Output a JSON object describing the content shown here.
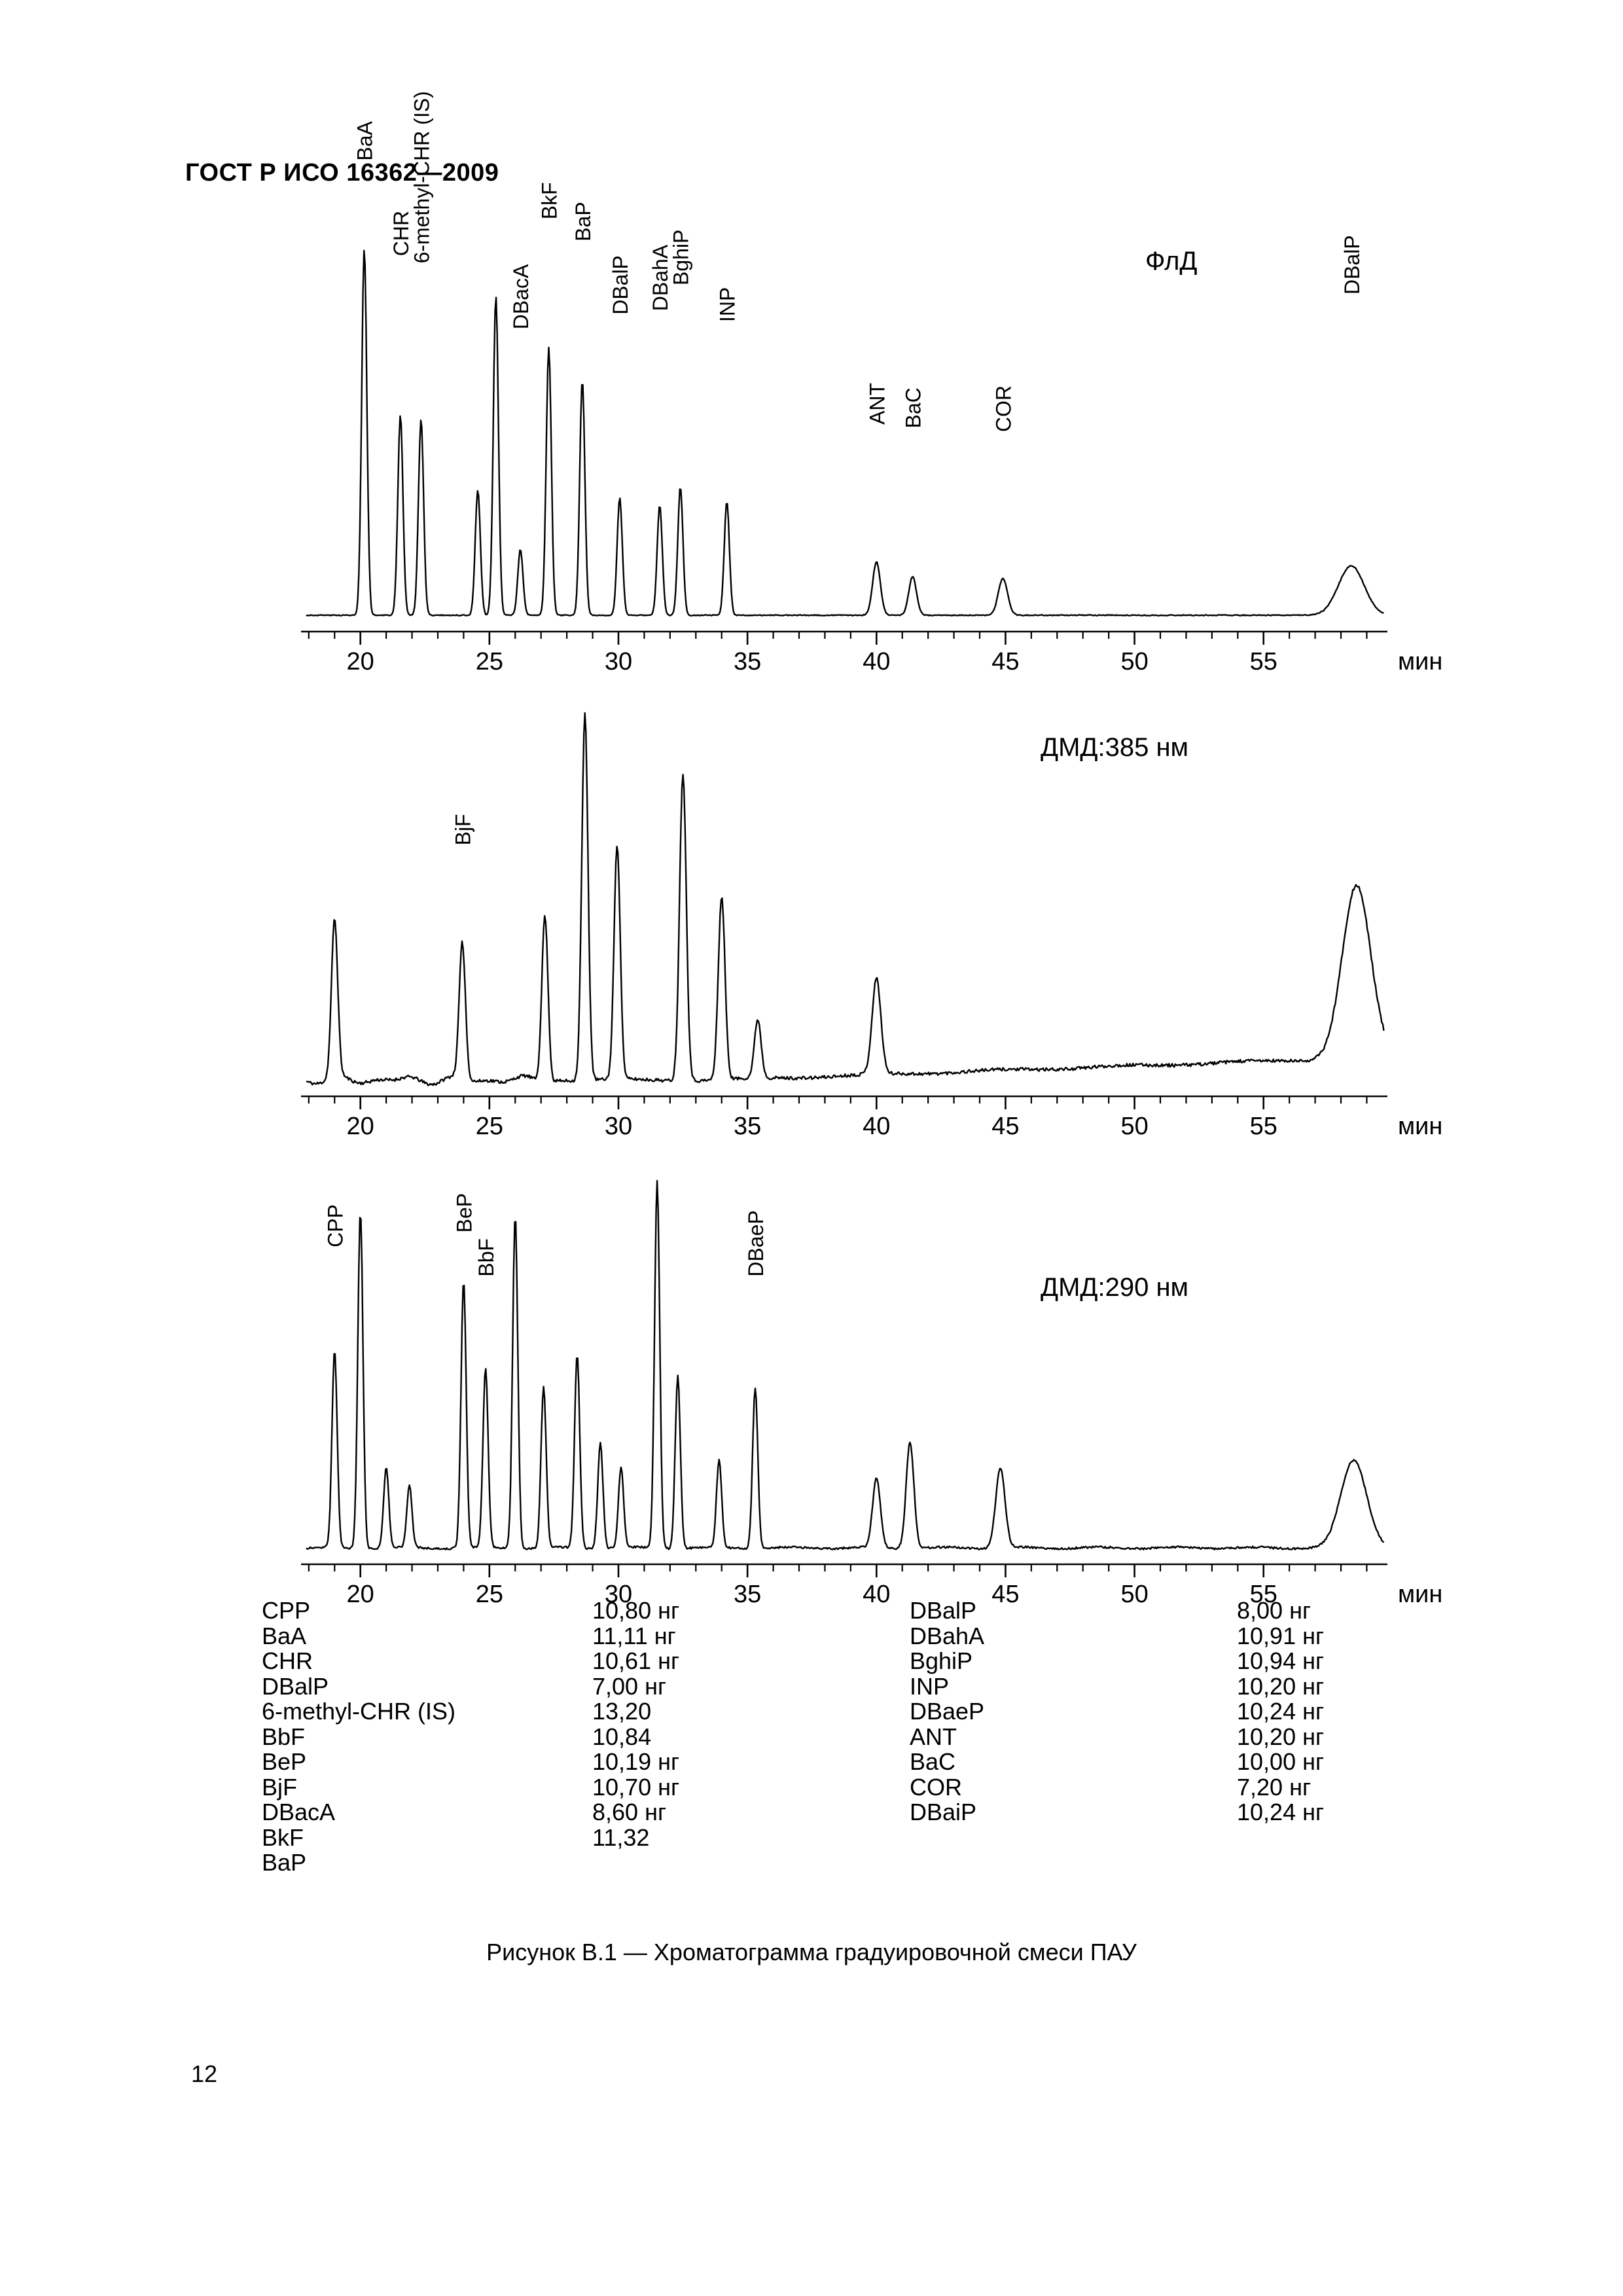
{
  "page": {
    "header": "ГОСТ Р ИСО 16362—2009",
    "caption": "Рисунок В.1 — Хроматограмма градуировочной смеси ПАУ",
    "page_number": "12"
  },
  "axis": {
    "unit": "мин",
    "t_min": 17.7,
    "t_max": 59.8,
    "major_ticks": [
      20,
      25,
      30,
      35,
      40,
      45,
      50,
      55
    ]
  },
  "chart_data": [
    {
      "type": "line",
      "title": "ФлД",
      "xlabel": "мин",
      "x_ticks": [
        20,
        25,
        30,
        35,
        40,
        45,
        50,
        55
      ],
      "baseline": "clean",
      "peaks": [
        {
          "t": 20.15,
          "h": 1.0,
          "label": "BaA",
          "ly": 1.24
        },
        {
          "t": 21.55,
          "h": 0.545,
          "label": "CHR",
          "ly": 0.98
        },
        {
          "t": 22.35,
          "h": 0.535,
          "label": "6-methyl-CHR (IS)",
          "ly": 0.96
        },
        {
          "t": 24.55,
          "h": 0.34
        },
        {
          "t": 25.25,
          "h": 0.87
        },
        {
          "t": 26.2,
          "h": 0.18,
          "label": "DBacA",
          "ly": 0.78
        },
        {
          "t": 27.3,
          "h": 0.73,
          "label": "BkF",
          "ly": 1.08
        },
        {
          "t": 28.6,
          "h": 0.64,
          "label": "BaP",
          "ly": 1.02
        },
        {
          "t": 30.05,
          "h": 0.32,
          "label": "DBalP",
          "ly": 0.82
        },
        {
          "t": 31.6,
          "h": 0.3,
          "label": "DBahA",
          "ly": 0.83
        },
        {
          "t": 32.4,
          "h": 0.35,
          "label": "BghiP",
          "ly": 0.9
        },
        {
          "t": 34.2,
          "h": 0.31,
          "label": "INP",
          "ly": 0.8
        },
        {
          "t": 40.0,
          "h": 0.145,
          "sigma": 0.15,
          "label": "ANT",
          "ly": 0.52
        },
        {
          "t": 41.4,
          "h": 0.105,
          "sigma": 0.15,
          "label": "BaC",
          "ly": 0.51
        },
        {
          "t": 44.9,
          "h": 0.1,
          "sigma": 0.18,
          "label": "COR",
          "ly": 0.5
        },
        {
          "t": 58.4,
          "h": 0.135,
          "sigma": 0.5,
          "label": "DBalP",
          "ly": 0.875
        }
      ]
    },
    {
      "type": "line",
      "title": "ДМД:385 нм",
      "xlabel": "мин",
      "x_ticks": [
        20,
        25,
        30,
        35,
        40,
        45,
        50,
        55
      ],
      "baseline": "noisy-rise",
      "peaks": [
        {
          "t": 19.0,
          "h": 0.43,
          "sigma": 0.12
        },
        {
          "t": 23.95,
          "h": 0.37,
          "sigma": 0.12,
          "label": "BjF",
          "ly": 0.64
        },
        {
          "t": 27.15,
          "h": 0.46,
          "sigma": 0.12
        },
        {
          "t": 28.7,
          "h": 1.0,
          "sigma": 0.12
        },
        {
          "t": 29.95,
          "h": 0.64,
          "sigma": 0.12
        },
        {
          "t": 32.5,
          "h": 0.84,
          "sigma": 0.13
        },
        {
          "t": 34.0,
          "h": 0.5,
          "sigma": 0.13
        },
        {
          "t": 35.4,
          "h": 0.16,
          "sigma": 0.13
        },
        {
          "t": 40.0,
          "h": 0.26,
          "sigma": 0.17
        },
        {
          "t": 58.6,
          "h": 0.47,
          "sigma": 0.55
        }
      ]
    },
    {
      "type": "line",
      "title": "ДМД:290 нм",
      "xlabel": "мин",
      "x_ticks": [
        20,
        25,
        30,
        35,
        40,
        45,
        50,
        55
      ],
      "baseline": "noisy",
      "peaks": [
        {
          "t": 19.0,
          "h": 0.54,
          "label": "CPP",
          "ly": 0.82
        },
        {
          "t": 20.0,
          "h": 0.92
        },
        {
          "t": 21.0,
          "h": 0.22
        },
        {
          "t": 21.9,
          "h": 0.17
        },
        {
          "t": 24.0,
          "h": 0.73,
          "label": "BeP",
          "ly": 0.86
        },
        {
          "t": 24.85,
          "h": 0.49,
          "label": "BbF",
          "ly": 0.74
        },
        {
          "t": 26.0,
          "h": 0.91
        },
        {
          "t": 27.1,
          "h": 0.44
        },
        {
          "t": 28.4,
          "h": 0.53
        },
        {
          "t": 29.3,
          "h": 0.29
        },
        {
          "t": 30.1,
          "h": 0.22
        },
        {
          "t": 31.5,
          "h": 1.0
        },
        {
          "t": 32.3,
          "h": 0.47
        },
        {
          "t": 33.9,
          "h": 0.24
        },
        {
          "t": 35.3,
          "h": 0.44,
          "label": "DBaeP",
          "ly": 0.74
        },
        {
          "t": 40.0,
          "h": 0.19,
          "sigma": 0.15
        },
        {
          "t": 41.3,
          "h": 0.29,
          "sigma": 0.15
        },
        {
          "t": 44.8,
          "h": 0.22,
          "sigma": 0.18
        },
        {
          "t": 58.5,
          "h": 0.24,
          "sigma": 0.5
        }
      ]
    }
  ],
  "legend": {
    "left": [
      {
        "name": "CPP",
        "value": "10,80 нг"
      },
      {
        "name": "BaA",
        "value": "11,11 нг"
      },
      {
        "name": "CHR",
        "value": "10,61 нг"
      },
      {
        "name": "DBalP",
        "value": "7,00 нг"
      },
      {
        "name": "6-methyl-CHR (IS)",
        "value": "13,20"
      },
      {
        "name": "BbF",
        "value": "10,84"
      },
      {
        "name": "BeP",
        "value": "10,19 нг"
      },
      {
        "name": "BjF",
        "value": "10,70 нг"
      },
      {
        "name": "DBacA",
        "value": "8,60 нг"
      },
      {
        "name": "BkF",
        "value": "11,32"
      },
      {
        "name": "BaP",
        "value": ""
      }
    ],
    "right": [
      {
        "name": "DBalP",
        "value": "8,00 нг"
      },
      {
        "name": "DBahA",
        "value": "10,91 нг"
      },
      {
        "name": "BghiP",
        "value": "10,94 нг"
      },
      {
        "name": "INP",
        "value": "10,20 нг"
      },
      {
        "name": "DBaeP",
        "value": "10,24 нг"
      },
      {
        "name": "ANT",
        "value": "10,20 нг"
      },
      {
        "name": "BaC",
        "value": "10,00 нг"
      },
      {
        "name": "COR",
        "value": "7,20 нг"
      },
      {
        "name": "DBaiP",
        "value": "10,24 нг"
      }
    ]
  }
}
